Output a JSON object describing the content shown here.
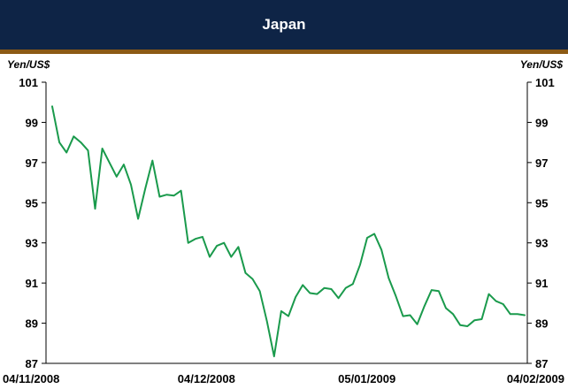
{
  "chart_data": {
    "type": "line",
    "title": "Japan",
    "ylabel_left": "Yen/US$",
    "ylabel_right": "Yen/US$",
    "ylim": [
      87,
      101
    ],
    "yticks": [
      87,
      89,
      91,
      93,
      95,
      97,
      99,
      101
    ],
    "xtick_labels": [
      "04/11/2008",
      "04/12/2008",
      "05/01/2009",
      "04/02/2009"
    ],
    "grid": false,
    "colors": {
      "line": "#1a9a4c",
      "header": "#0e2446",
      "header_rule": "#8c5a14"
    },
    "series": [
      {
        "values": [
          99.8,
          98.0,
          97.5,
          98.3,
          98.0,
          97.6,
          94.7,
          97.7,
          97.0,
          96.3,
          96.9,
          95.9,
          94.2,
          95.7,
          97.1,
          95.3,
          95.4,
          95.35,
          95.6,
          93.0,
          93.2,
          93.3,
          92.3,
          92.85,
          93.0,
          92.3,
          92.8,
          91.5,
          91.2,
          90.6,
          89.1,
          87.35,
          89.6,
          89.35,
          90.3,
          90.9,
          90.5,
          90.45,
          90.75,
          90.7,
          90.25,
          90.75,
          90.95,
          91.9,
          93.25,
          93.45,
          92.65,
          91.25,
          90.35,
          89.35,
          89.4,
          88.95,
          89.85,
          90.65,
          90.6,
          89.75,
          89.45,
          88.9,
          88.85,
          89.15,
          89.2,
          90.45,
          90.1,
          89.95,
          89.45,
          89.45,
          89.4
        ]
      }
    ]
  }
}
